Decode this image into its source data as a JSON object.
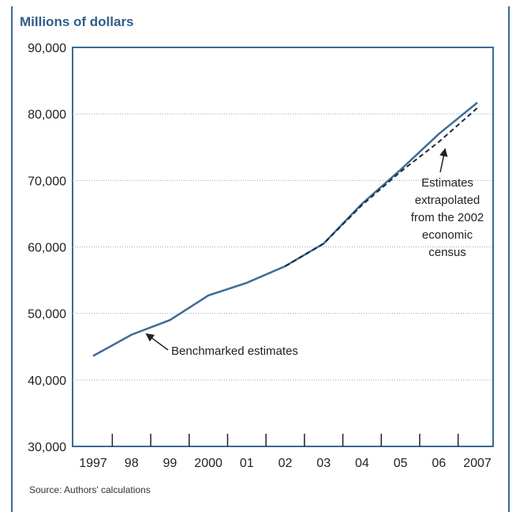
{
  "chart_data": {
    "type": "line",
    "ylabel": "Millions of dollars",
    "source": "Source: Authors' calculations",
    "x_tick_labels": [
      "1997",
      "98",
      "99",
      "2000",
      "01",
      "02",
      "03",
      "04",
      "05",
      "06",
      "2007"
    ],
    "y_ticks": [
      30000,
      40000,
      50000,
      60000,
      70000,
      80000,
      90000
    ],
    "y_tick_labels": [
      "30,000",
      "40,000",
      "50,000",
      "60,000",
      "70,000",
      "80,000",
      "90,000"
    ],
    "ylim": [
      30000,
      90000
    ],
    "grid": "horizontal dotted",
    "series": [
      {
        "name": "Benchmarked estimates",
        "style": "solid",
        "color": "#3f6c96",
        "x": [
          1997,
          1998,
          1999,
          2000,
          2001,
          2002,
          2003,
          2004,
          2005,
          2006,
          2007
        ],
        "values": [
          43600,
          46800,
          49000,
          52700,
          54600,
          57100,
          60500,
          66500,
          71600,
          77000,
          81700
        ]
      },
      {
        "name": "Estimates extrapolated from the 2002 economic census",
        "style": "dashed",
        "color": "#1a2a3a",
        "x": [
          2002,
          2003,
          2004,
          2005,
          2006,
          2007
        ],
        "values": [
          57100,
          60500,
          66300,
          71300,
          75800,
          80900
        ]
      }
    ],
    "annotations": [
      {
        "text": "Benchmarked estimates",
        "points_to": {
          "x": 1998.3,
          "y": 47400
        }
      },
      {
        "lines": [
          "Estimates",
          "extrapolated",
          "from the 2002",
          "economic",
          "census"
        ],
        "points_to": {
          "x": 2006.1,
          "y": 75700
        }
      }
    ]
  }
}
